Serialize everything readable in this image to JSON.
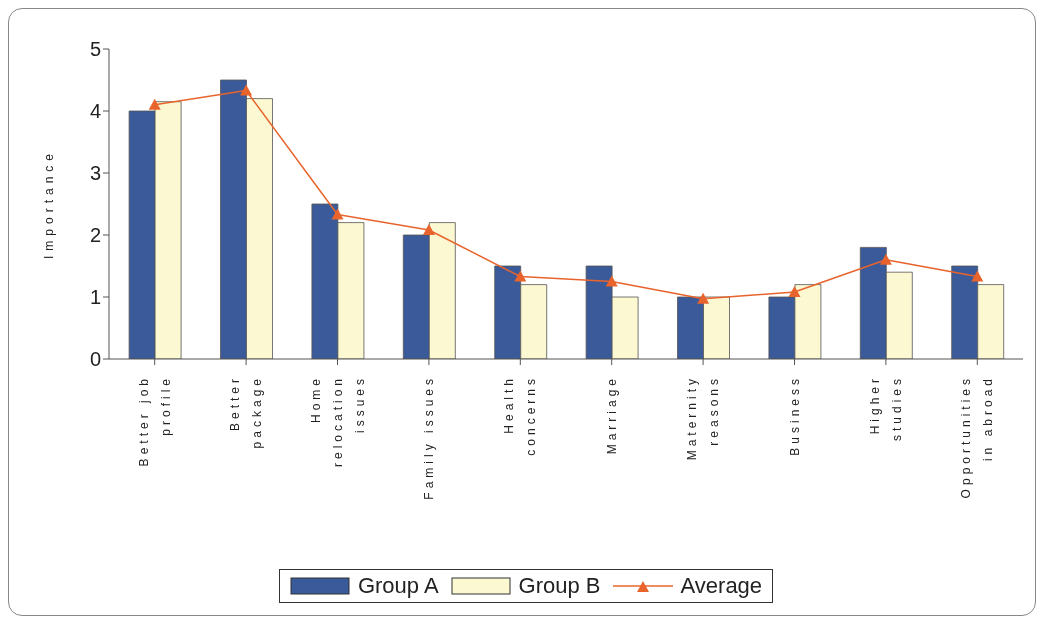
{
  "chart_data": {
    "type": "bar",
    "ylabel": "Importance",
    "categories": [
      "Better job profile",
      "Better package",
      "Home relocation issues",
      "Family issues",
      "Health concerns",
      "Marriage",
      "Maternity reasons",
      "Business",
      "Higher studies",
      "Opportunities in abroad"
    ],
    "series": [
      {
        "name": "Group A",
        "color": "#3a5a9a",
        "values": [
          4.0,
          4.5,
          2.5,
          2.0,
          1.5,
          1.5,
          1.0,
          1.0,
          1.8,
          1.5
        ]
      },
      {
        "name": "Group B",
        "color": "#fbf8d2",
        "values": [
          4.15,
          4.2,
          2.2,
          2.2,
          1.2,
          1.0,
          1.0,
          1.2,
          1.4,
          1.2
        ]
      },
      {
        "name": "Average",
        "type": "line",
        "color": "#e8642c",
        "values": [
          4.1,
          4.33,
          2.33,
          2.08,
          1.33,
          1.25,
          0.97,
          1.08,
          1.6,
          1.33
        ]
      }
    ],
    "ylim": [
      0,
      5
    ],
    "yticks": [
      0,
      1,
      2,
      3,
      4,
      5
    ],
    "grid": false,
    "legend": "bottom",
    "marker": "triangle"
  }
}
